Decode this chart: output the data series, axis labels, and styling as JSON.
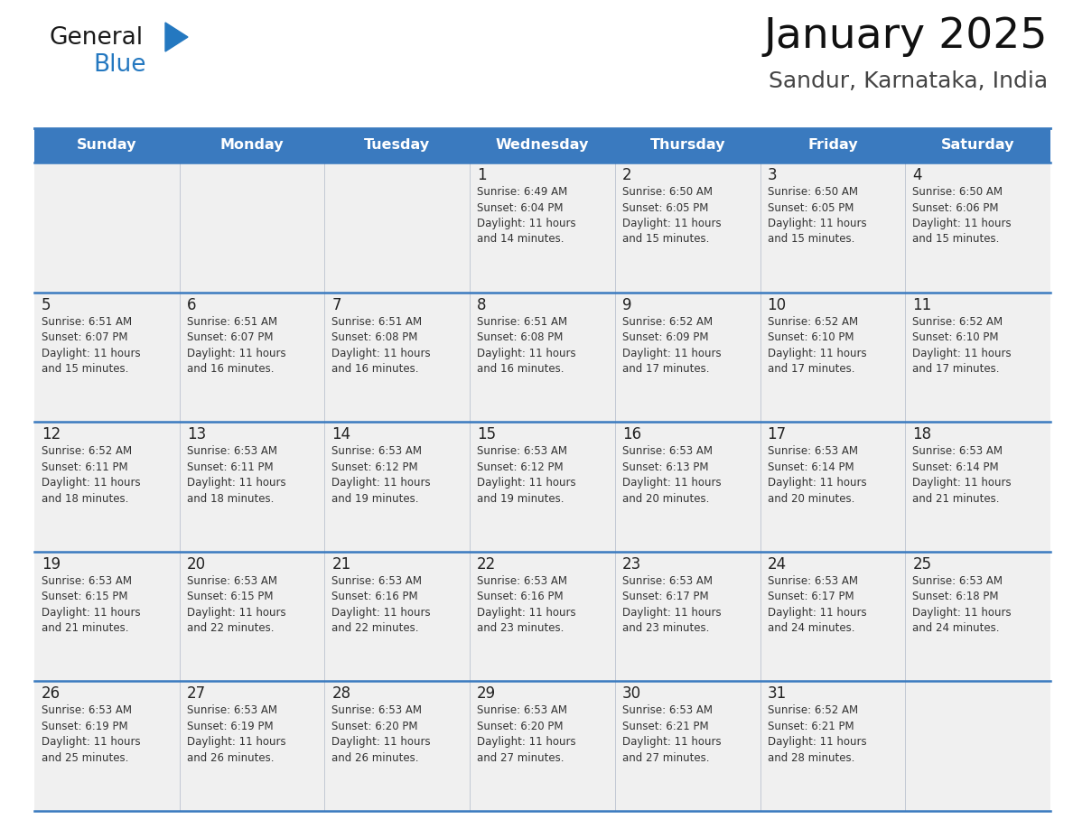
{
  "title": "January 2025",
  "subtitle": "Sandur, Karnataka, India",
  "header_bg": "#3a7abf",
  "header_text_color": "#ffffff",
  "cell_bg": "#f0f0f0",
  "row_line_color": "#3a7abf",
  "col_line_color": "#c0c0c0",
  "text_color": "#333333",
  "day_num_color": "#222222",
  "days_of_week": [
    "Sunday",
    "Monday",
    "Tuesday",
    "Wednesday",
    "Thursday",
    "Friday",
    "Saturday"
  ],
  "weeks": [
    [
      {
        "day": "",
        "info": ""
      },
      {
        "day": "",
        "info": ""
      },
      {
        "day": "",
        "info": ""
      },
      {
        "day": "1",
        "info": "Sunrise: 6:49 AM\nSunset: 6:04 PM\nDaylight: 11 hours\nand 14 minutes."
      },
      {
        "day": "2",
        "info": "Sunrise: 6:50 AM\nSunset: 6:05 PM\nDaylight: 11 hours\nand 15 minutes."
      },
      {
        "day": "3",
        "info": "Sunrise: 6:50 AM\nSunset: 6:05 PM\nDaylight: 11 hours\nand 15 minutes."
      },
      {
        "day": "4",
        "info": "Sunrise: 6:50 AM\nSunset: 6:06 PM\nDaylight: 11 hours\nand 15 minutes."
      }
    ],
    [
      {
        "day": "5",
        "info": "Sunrise: 6:51 AM\nSunset: 6:07 PM\nDaylight: 11 hours\nand 15 minutes."
      },
      {
        "day": "6",
        "info": "Sunrise: 6:51 AM\nSunset: 6:07 PM\nDaylight: 11 hours\nand 16 minutes."
      },
      {
        "day": "7",
        "info": "Sunrise: 6:51 AM\nSunset: 6:08 PM\nDaylight: 11 hours\nand 16 minutes."
      },
      {
        "day": "8",
        "info": "Sunrise: 6:51 AM\nSunset: 6:08 PM\nDaylight: 11 hours\nand 16 minutes."
      },
      {
        "day": "9",
        "info": "Sunrise: 6:52 AM\nSunset: 6:09 PM\nDaylight: 11 hours\nand 17 minutes."
      },
      {
        "day": "10",
        "info": "Sunrise: 6:52 AM\nSunset: 6:10 PM\nDaylight: 11 hours\nand 17 minutes."
      },
      {
        "day": "11",
        "info": "Sunrise: 6:52 AM\nSunset: 6:10 PM\nDaylight: 11 hours\nand 17 minutes."
      }
    ],
    [
      {
        "day": "12",
        "info": "Sunrise: 6:52 AM\nSunset: 6:11 PM\nDaylight: 11 hours\nand 18 minutes."
      },
      {
        "day": "13",
        "info": "Sunrise: 6:53 AM\nSunset: 6:11 PM\nDaylight: 11 hours\nand 18 minutes."
      },
      {
        "day": "14",
        "info": "Sunrise: 6:53 AM\nSunset: 6:12 PM\nDaylight: 11 hours\nand 19 minutes."
      },
      {
        "day": "15",
        "info": "Sunrise: 6:53 AM\nSunset: 6:12 PM\nDaylight: 11 hours\nand 19 minutes."
      },
      {
        "day": "16",
        "info": "Sunrise: 6:53 AM\nSunset: 6:13 PM\nDaylight: 11 hours\nand 20 minutes."
      },
      {
        "day": "17",
        "info": "Sunrise: 6:53 AM\nSunset: 6:14 PM\nDaylight: 11 hours\nand 20 minutes."
      },
      {
        "day": "18",
        "info": "Sunrise: 6:53 AM\nSunset: 6:14 PM\nDaylight: 11 hours\nand 21 minutes."
      }
    ],
    [
      {
        "day": "19",
        "info": "Sunrise: 6:53 AM\nSunset: 6:15 PM\nDaylight: 11 hours\nand 21 minutes."
      },
      {
        "day": "20",
        "info": "Sunrise: 6:53 AM\nSunset: 6:15 PM\nDaylight: 11 hours\nand 22 minutes."
      },
      {
        "day": "21",
        "info": "Sunrise: 6:53 AM\nSunset: 6:16 PM\nDaylight: 11 hours\nand 22 minutes."
      },
      {
        "day": "22",
        "info": "Sunrise: 6:53 AM\nSunset: 6:16 PM\nDaylight: 11 hours\nand 23 minutes."
      },
      {
        "day": "23",
        "info": "Sunrise: 6:53 AM\nSunset: 6:17 PM\nDaylight: 11 hours\nand 23 minutes."
      },
      {
        "day": "24",
        "info": "Sunrise: 6:53 AM\nSunset: 6:17 PM\nDaylight: 11 hours\nand 24 minutes."
      },
      {
        "day": "25",
        "info": "Sunrise: 6:53 AM\nSunset: 6:18 PM\nDaylight: 11 hours\nand 24 minutes."
      }
    ],
    [
      {
        "day": "26",
        "info": "Sunrise: 6:53 AM\nSunset: 6:19 PM\nDaylight: 11 hours\nand 25 minutes."
      },
      {
        "day": "27",
        "info": "Sunrise: 6:53 AM\nSunset: 6:19 PM\nDaylight: 11 hours\nand 26 minutes."
      },
      {
        "day": "28",
        "info": "Sunrise: 6:53 AM\nSunset: 6:20 PM\nDaylight: 11 hours\nand 26 minutes."
      },
      {
        "day": "29",
        "info": "Sunrise: 6:53 AM\nSunset: 6:20 PM\nDaylight: 11 hours\nand 27 minutes."
      },
      {
        "day": "30",
        "info": "Sunrise: 6:53 AM\nSunset: 6:21 PM\nDaylight: 11 hours\nand 27 minutes."
      },
      {
        "day": "31",
        "info": "Sunrise: 6:52 AM\nSunset: 6:21 PM\nDaylight: 11 hours\nand 28 minutes."
      },
      {
        "day": "",
        "info": ""
      }
    ]
  ],
  "logo_text_general": "General",
  "logo_text_blue": "Blue",
  "logo_color_general": "#1a1a1a",
  "logo_color_blue": "#2478c0",
  "logo_triangle_color": "#2478c0",
  "fig_width": 11.88,
  "fig_height": 9.18,
  "dpi": 100
}
